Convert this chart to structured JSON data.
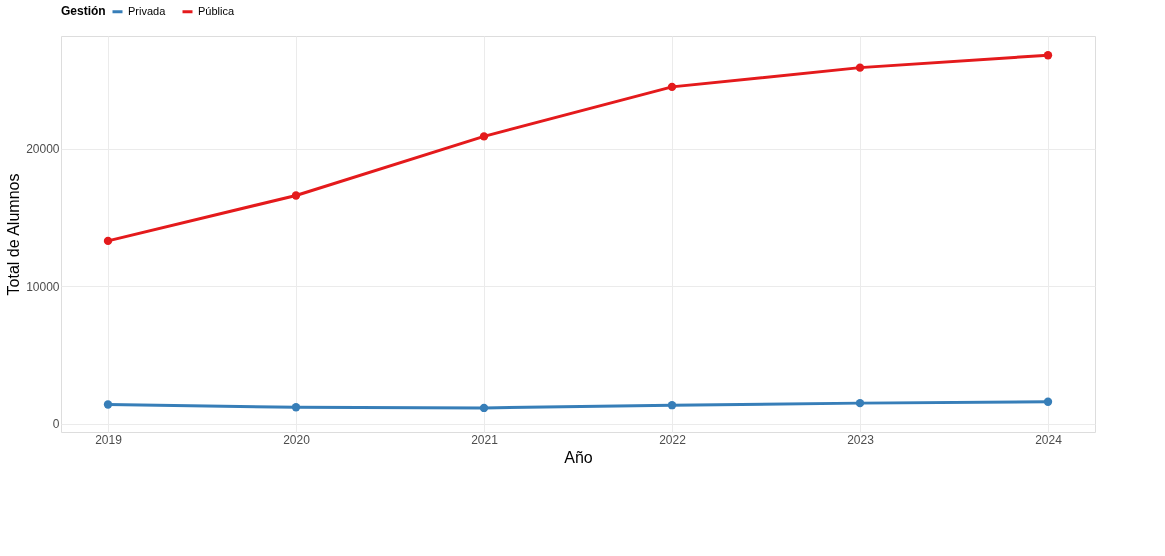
{
  "chart_data": {
    "type": "line",
    "xlabel": "Año",
    "ylabel": "Total de Alumnos",
    "legend_title": "Gestión",
    "x": [
      2019,
      2020,
      2021,
      2022,
      2023,
      2024
    ],
    "series": [
      {
        "name": "Privada",
        "color": "#377eb8",
        "values": [
          1400,
          1200,
          1150,
          1350,
          1500,
          1600
        ]
      },
      {
        "name": "Pública",
        "color": "#e41a1c",
        "values": [
          13300,
          16600,
          20900,
          24500,
          25900,
          26800
        ]
      }
    ],
    "xlim": [
      2018.75,
      2024.25
    ],
    "xticks": [
      2019,
      2020,
      2021,
      2022,
      2023,
      2024
    ],
    "ylim": [
      -600,
      28200
    ],
    "yticks": [
      0,
      10000,
      20000
    ],
    "grid": true,
    "legend": "top",
    "marker": "circle",
    "line_style": "solid"
  }
}
